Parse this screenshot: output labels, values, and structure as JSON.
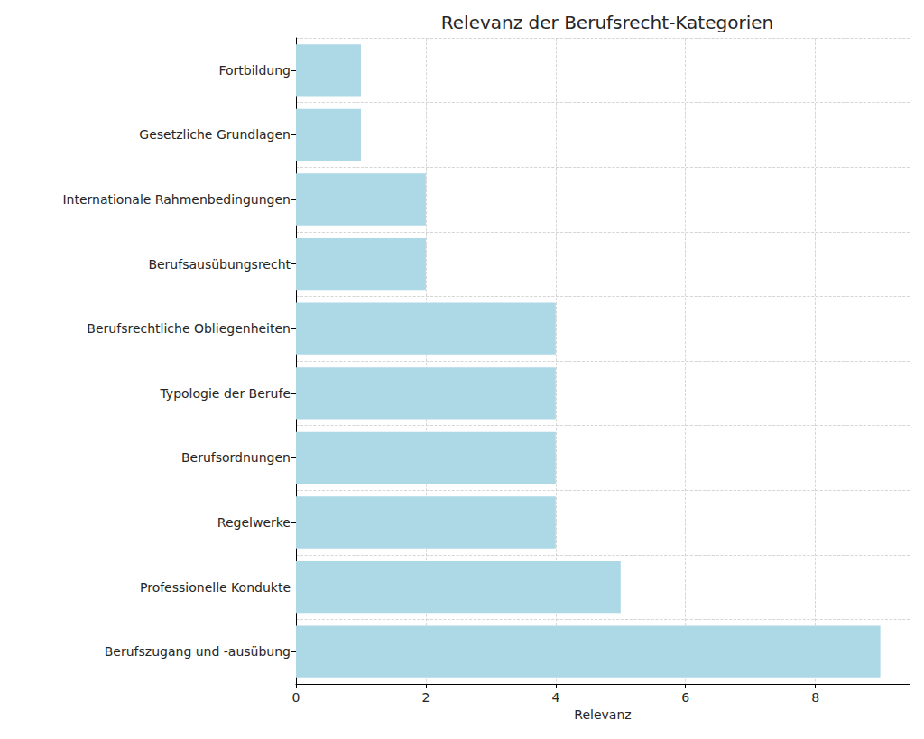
{
  "chart_data": {
    "type": "bar",
    "orientation": "horizontal",
    "title": "Relevanz der Berufsrecht-Kategorien",
    "xlabel": "Relevanz",
    "categories": [
      "Berufszugang und -ausübung",
      "Professionelle Kondukte",
      "Regelwerke",
      "Berufsordnungen",
      "Typologie der Berufe",
      "Berufsrechtliche Obliegenheiten",
      "Berufsausübungsrecht",
      "Internationale Rahmenbedingungen",
      "Gesetzliche Grundlagen",
      "Fortbildung"
    ],
    "values": [
      9,
      5,
      4,
      4,
      4,
      4,
      2,
      2,
      1,
      1
    ],
    "color": "#add8e6",
    "xlim": [
      0,
      9.45
    ],
    "xticks": [
      0,
      2,
      4,
      6,
      8
    ],
    "grid": true
  }
}
